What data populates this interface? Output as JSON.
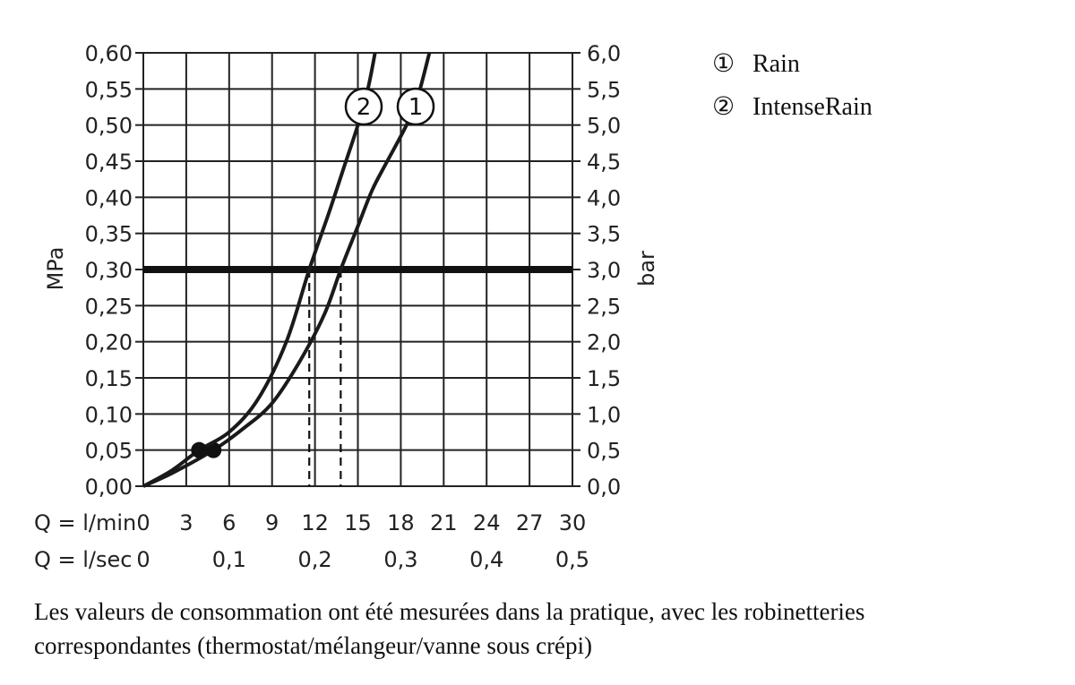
{
  "chart_data": {
    "type": "line",
    "y_left": {
      "label": "MPa",
      "ticks": [
        "0,00",
        "0,05",
        "0,10",
        "0,15",
        "0,20",
        "0,25",
        "0,30",
        "0,35",
        "0,40",
        "0,45",
        "0,50",
        "0,55",
        "0,60"
      ],
      "range": [
        0,
        0.6
      ]
    },
    "y_right": {
      "label": "bar",
      "ticks": [
        "0,0",
        "0,5",
        "1,0",
        "1,5",
        "2,0",
        "2,5",
        "3,0",
        "3,5",
        "4,0",
        "4,5",
        "5,0",
        "5,5",
        "6,0"
      ],
      "range": [
        0,
        6
      ]
    },
    "x_lmin": {
      "label": "Q = l/min",
      "ticks": [
        "0",
        "3",
        "6",
        "9",
        "12",
        "15",
        "18",
        "21",
        "24",
        "27",
        "30"
      ],
      "range": [
        0,
        30
      ]
    },
    "x_lsec": {
      "label": "Q = l/sec",
      "ticks": [
        "0",
        "0,1",
        "0,2",
        "0,3",
        "0,4",
        "0,5"
      ],
      "values": [
        0,
        0.1,
        0.2,
        0.3,
        0.4,
        0.5
      ]
    },
    "grid": true,
    "reference_line": {
      "y": 0.3
    },
    "series": [
      {
        "name": "Rain",
        "marker": "1",
        "points": [
          [
            0,
            0
          ],
          [
            2,
            0.018
          ],
          [
            4.9,
            0.05
          ],
          [
            7,
            0.08
          ],
          [
            9,
            0.115
          ],
          [
            11,
            0.175
          ],
          [
            12.7,
            0.24
          ],
          [
            13.8,
            0.3
          ],
          [
            15,
            0.36
          ],
          [
            16,
            0.41
          ],
          [
            17,
            0.448
          ],
          [
            18.4,
            0.5
          ],
          [
            19.2,
            0.54
          ],
          [
            20,
            0.6
          ]
        ],
        "start_dot": [
          4.9,
          0.05
        ],
        "flow_at_03MPa": 13.8
      },
      {
        "name": "IntenseRain",
        "marker": "2",
        "points": [
          [
            0,
            0
          ],
          [
            2,
            0.022
          ],
          [
            3.9,
            0.05
          ],
          [
            6,
            0.075
          ],
          [
            8,
            0.12
          ],
          [
            10,
            0.2
          ],
          [
            11.6,
            0.3
          ],
          [
            13,
            0.38
          ],
          [
            14,
            0.44
          ],
          [
            15,
            0.5
          ],
          [
            15.7,
            0.55
          ],
          [
            16.2,
            0.6
          ]
        ],
        "start_dot": [
          3.9,
          0.05
        ],
        "flow_at_03MPa": 11.6
      }
    ]
  },
  "legend": [
    {
      "symbol": "①",
      "label": "Rain"
    },
    {
      "symbol": "②",
      "label": "IntenseRain"
    }
  ],
  "note": "Les valeurs de consommation ont été mesurées dans la pratique, avec les robinetteries correspondantes (thermostat/mélangeur/vanne sous crépi)"
}
